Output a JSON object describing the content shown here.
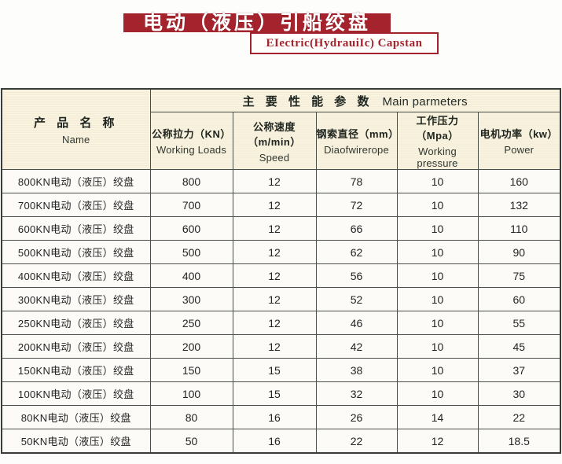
{
  "header": {
    "title_zh": "电动（液压）引船绞盘",
    "title_en": "EIectric(HydrauiIc) Capstan"
  },
  "colors": {
    "accent_red": "#a5232c",
    "header_cream": "#f8f2df",
    "grid_line": "#4a4f4a"
  },
  "table": {
    "name_header": {
      "zh": "产 品 名 称",
      "en": "Name"
    },
    "main_header": {
      "zh": "主 要 性 能 参 数",
      "en": "Main parmeters"
    },
    "columns": [
      {
        "zh": "公称拉力（KN）",
        "en": "Working Loads"
      },
      {
        "zh": "公称速度（m/min）",
        "en": "Speed"
      },
      {
        "zh": "钢索直径（mm）",
        "en": "Diaofwirerope"
      },
      {
        "zh": "工作压力（Mpa）",
        "en": "Working pressure"
      },
      {
        "zh": "电机功率（kw）",
        "en": "Power"
      }
    ],
    "rows": [
      {
        "name": "800KN电动（液压）绞盘",
        "values": [
          "800",
          "12",
          "78",
          "10",
          "160"
        ]
      },
      {
        "name": "700KN电动（液压）绞盘",
        "values": [
          "700",
          "12",
          "72",
          "10",
          "132"
        ]
      },
      {
        "name": "600KN电动（液压）绞盘",
        "values": [
          "600",
          "12",
          "66",
          "10",
          "110"
        ]
      },
      {
        "name": "500KN电动（液压）绞盘",
        "values": [
          "500",
          "12",
          "62",
          "10",
          "90"
        ]
      },
      {
        "name": "400KN电动（液压）绞盘",
        "values": [
          "400",
          "12",
          "56",
          "10",
          "75"
        ]
      },
      {
        "name": "300KN电动（液压）绞盘",
        "values": [
          "300",
          "12",
          "52",
          "10",
          "60"
        ]
      },
      {
        "name": "250KN电动（液压）绞盘",
        "values": [
          "250",
          "12",
          "46",
          "10",
          "55"
        ]
      },
      {
        "name": "200KN电动（液压）绞盘",
        "values": [
          "200",
          "12",
          "42",
          "10",
          "45"
        ]
      },
      {
        "name": "150KN电动（液压）绞盘",
        "values": [
          "150",
          "15",
          "38",
          "10",
          "37"
        ]
      },
      {
        "name": "100KN电动（液压）绞盘",
        "values": [
          "100",
          "15",
          "32",
          "10",
          "30"
        ]
      },
      {
        "name": "80KN电动（液压）绞盘",
        "values": [
          "80",
          "16",
          "26",
          "14",
          "22"
        ]
      },
      {
        "name": "50KN电动（液压）绞盘",
        "values": [
          "50",
          "16",
          "22",
          "12",
          "18.5"
        ]
      }
    ]
  }
}
